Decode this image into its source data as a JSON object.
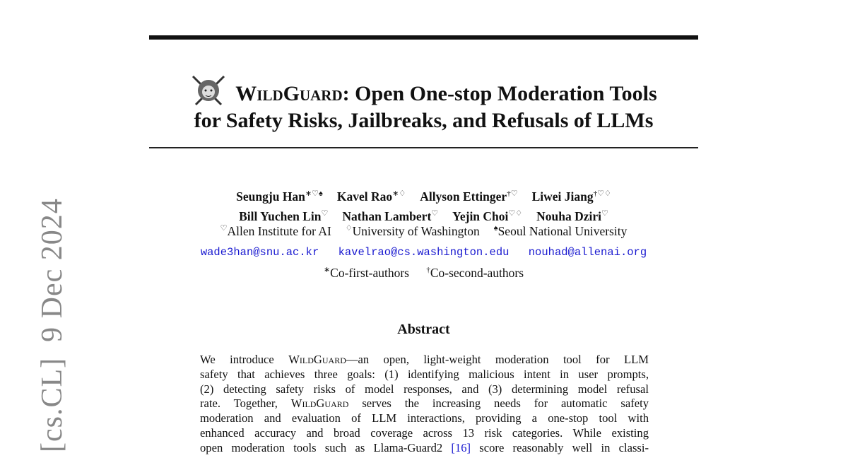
{
  "arxiv_stamp": {
    "category": "[cs.CL]",
    "date": "9 Dec 2024"
  },
  "title": {
    "name": "WildGuard",
    "line1_rest": ": Open One-stop Moderation Tools",
    "line2": "for Safety Risks, Jailbreaks, and Refusals of LLMs",
    "logo": "lion-crest-with-swords"
  },
  "authors": [
    {
      "name": "Seungju Han",
      "marks": "∗♡♠"
    },
    {
      "name": "Kavel Rao",
      "marks": "∗♢"
    },
    {
      "name": "Allyson Ettinger",
      "marks": "†♡"
    },
    {
      "name": "Liwei Jiang",
      "marks": "†♡♢"
    },
    {
      "name": "Bill Yuchen Lin",
      "marks": "♡"
    },
    {
      "name": "Nathan Lambert",
      "marks": "♡"
    },
    {
      "name": "Yejin Choi",
      "marks": "♡♢"
    },
    {
      "name": "Nouha Dziri",
      "marks": "♡"
    }
  ],
  "affiliations": [
    {
      "mark": "♡",
      "name": "Allen Institute for AI"
    },
    {
      "mark": "♢",
      "name": "University of Washington"
    },
    {
      "mark": "♠",
      "name": "Seoul National University"
    }
  ],
  "emails": [
    "wade3han@snu.ac.kr",
    "kavelrao@cs.washington.edu",
    "nouhad@allenai.org"
  ],
  "notes": [
    {
      "mark": "∗",
      "text": "Co-first-authors"
    },
    {
      "mark": "†",
      "text": "Co-second-authors"
    }
  ],
  "abstract": {
    "heading": "Abstract",
    "lines": [
      {
        "pre": "We introduce ",
        "sc": "WildGuard",
        "post": "—an open, light-weight moderation tool for LLM"
      },
      {
        "pre": "safety that achieves three goals: (1) identifying malicious intent in user prompts,"
      },
      {
        "pre": "(2) detecting safety risks of model responses, and (3) determining model refusal"
      },
      {
        "pre": "rate.  Together, ",
        "sc": "WildGuard",
        "post": " serves the increasing needs for automatic safety"
      },
      {
        "pre": "moderation and evaluation of LLM interactions, providing a one-stop tool with"
      },
      {
        "pre": "enhanced accuracy and broad coverage across 13 risk categories. While existing"
      },
      {
        "pre": "open moderation tools such as Llama-Guard2 ",
        "cite": "[16]",
        "post": " score reasonably well in classi-"
      }
    ]
  },
  "colors": {
    "link": "#1a1ad0",
    "stamp": "#888888"
  }
}
